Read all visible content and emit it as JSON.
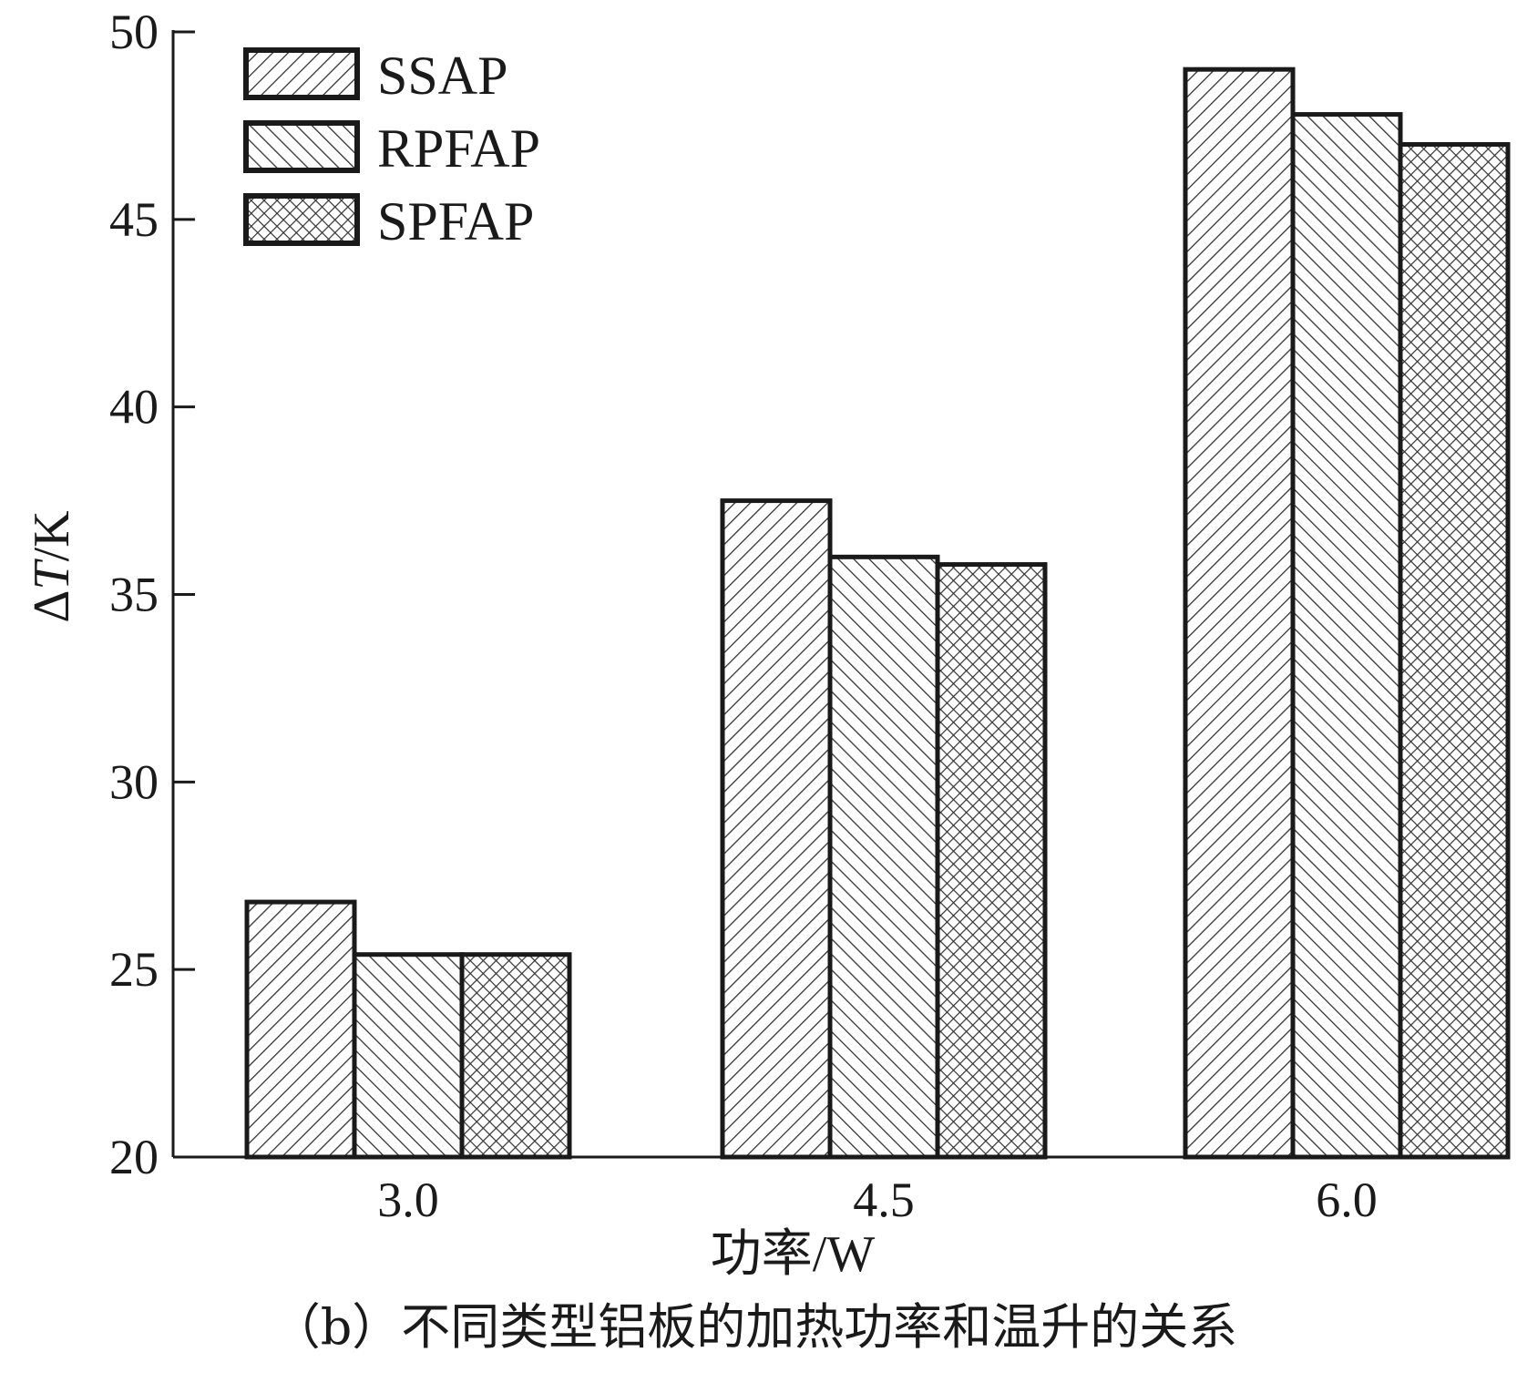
{
  "chart_data": {
    "type": "bar",
    "categories": [
      "3.0",
      "4.5",
      "6.0"
    ],
    "series": [
      {
        "name": "SSAP",
        "values": [
          26.8,
          37.5,
          49.0
        ],
        "pattern": "diag-forward"
      },
      {
        "name": "RPFAP",
        "values": [
          25.4,
          36.0,
          47.8
        ],
        "pattern": "diag-backward"
      },
      {
        "name": "SPFAP",
        "values": [
          25.4,
          35.8,
          47.0
        ],
        "pattern": "crosshatch"
      }
    ],
    "xlabel": "功率/W",
    "ylabel_prefix": "Δ",
    "ylabel_italic": "T",
    "ylabel_suffix": "/K",
    "ylim": [
      20,
      50
    ],
    "yticks": [
      20,
      25,
      30,
      35,
      40,
      45,
      50
    ],
    "legend_position": "top-left",
    "grid": false,
    "caption": "（b）不同类型铝板的加热功率和温升的关系",
    "colors": {
      "ink": "#1a1a1a",
      "hatch": "#333333",
      "fill": "#ffffff"
    }
  }
}
